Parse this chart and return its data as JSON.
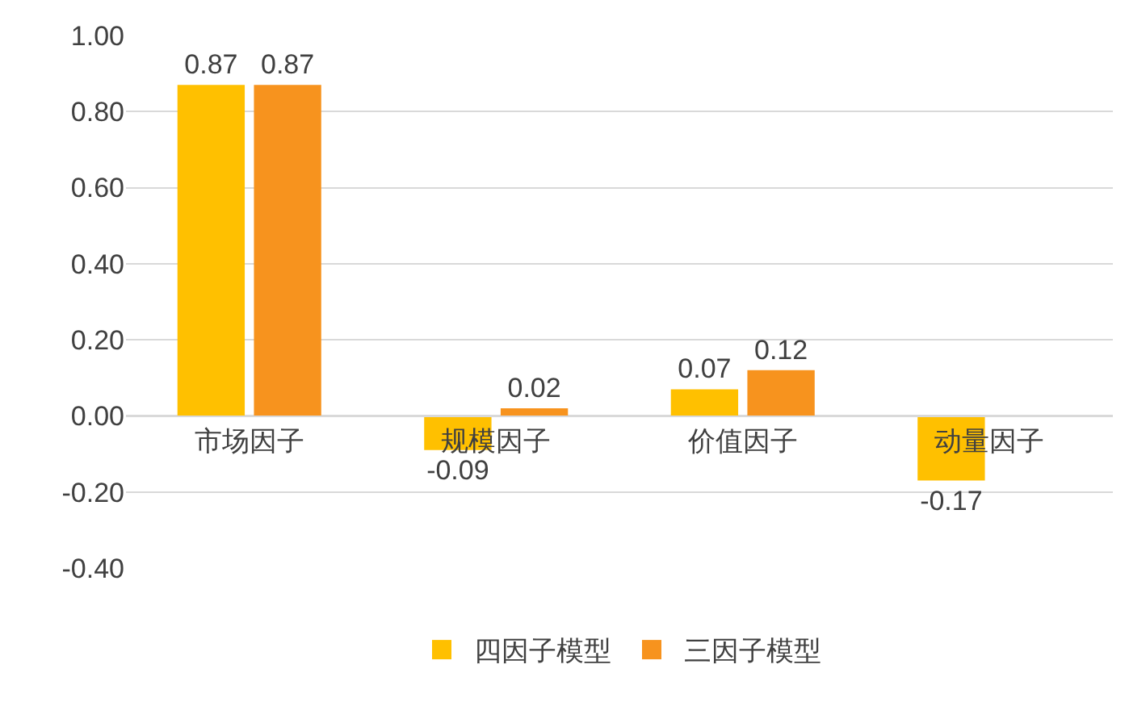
{
  "chart_data": {
    "type": "bar",
    "categories": [
      "市场因子",
      "规模因子",
      "价值因子",
      "动量因子"
    ],
    "series": [
      {
        "name": "四因子模型",
        "color": "#ffc000",
        "values": [
          0.87,
          -0.09,
          0.07,
          -0.17
        ],
        "value_labels": [
          "0.87",
          "-0.09",
          "0.07",
          "-0.17"
        ]
      },
      {
        "name": "三因子模型",
        "color": "#f7931e",
        "values": [
          0.87,
          0.02,
          0.12,
          null
        ],
        "value_labels": [
          "0.87",
          "0.02",
          "0.12",
          null
        ]
      }
    ],
    "ylim": [
      -0.4,
      1.0
    ],
    "yticks": [
      {
        "value": -0.4,
        "label": "-0.40"
      },
      {
        "value": -0.2,
        "label": "-0.20"
      },
      {
        "value": 0,
        "label": "0.00"
      },
      {
        "value": 0.2,
        "label": "0.20"
      },
      {
        "value": 0.4,
        "label": "0.40"
      },
      {
        "value": 0.6,
        "label": "0.60"
      },
      {
        "value": 0.8,
        "label": "0.80"
      },
      {
        "value": 1.0,
        "label": "1.00"
      }
    ],
    "grid": "y",
    "legend": "bottom"
  }
}
